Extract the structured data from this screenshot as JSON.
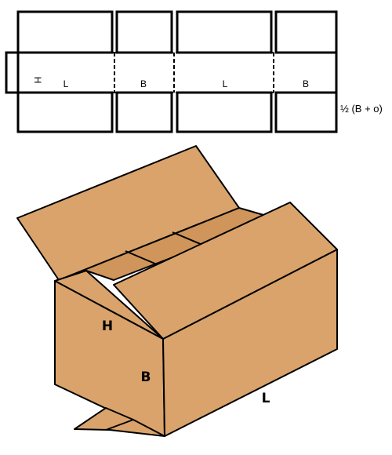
{
  "blank": {
    "height_label": "H",
    "panel_labels": [
      "L",
      "B",
      "L",
      "B"
    ],
    "flap_dimension": "½ (B + o)"
  },
  "box": {
    "height_label": "H",
    "width_label": "B",
    "length_label": "L"
  },
  "colors": {
    "cardboard": "#d9a36b",
    "cardboard_shade": "#c98f57",
    "line": "#000000"
  }
}
